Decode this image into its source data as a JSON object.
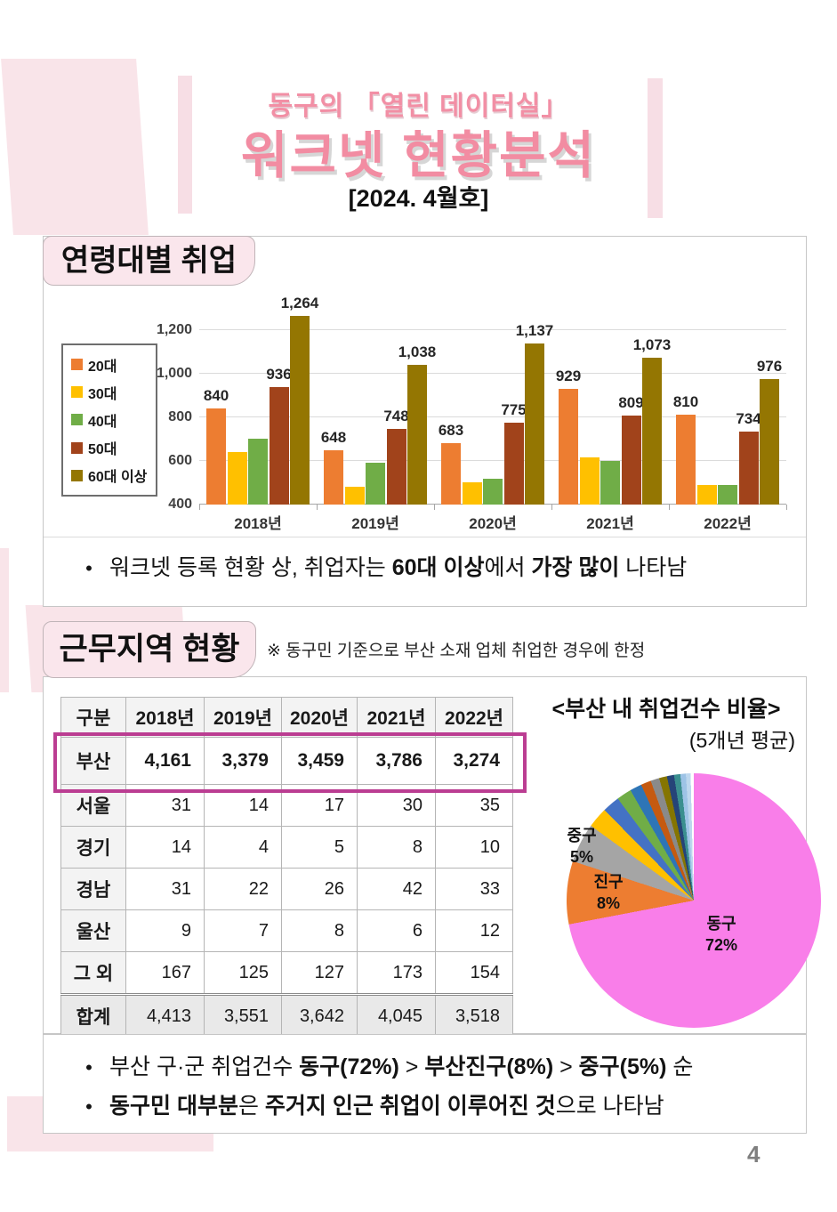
{
  "page": {
    "number": "4"
  },
  "colors": {
    "accent_pink": "#F28CA2",
    "deco_pink": "#F9E4E9",
    "label_box_pink": "#FAE6EC",
    "highlight_border": "#BB3D92",
    "pie_main_pink": "#F97EE9"
  },
  "header": {
    "subtitle": "동구의 「열린 데이터실」",
    "title": "워크넷 현황분석",
    "issue": "[2024. 4월호]"
  },
  "section1": {
    "label": "연령대별 취업",
    "bullet": {
      "segments": [
        {
          "t": "워크넷 등록 현황 상, 취업자는 ",
          "b": false
        },
        {
          "t": "60대 이상",
          "b": true
        },
        {
          "t": "에서 ",
          "b": false
        },
        {
          "t": "가장 많이",
          "b": true
        },
        {
          "t": " 나타남",
          "b": false
        }
      ]
    }
  },
  "chart_data": [
    {
      "type": "bar",
      "title": "연령대별 취업",
      "categories": [
        "2018년",
        "2019년",
        "2020년",
        "2021년",
        "2022년"
      ],
      "series": [
        {
          "name": "20대",
          "color": "#ED7D31",
          "values": [
            840,
            648,
            683,
            929,
            810
          ],
          "labeled": true
        },
        {
          "name": "30대",
          "color": "#FFC000",
          "values": [
            640,
            480,
            500,
            615,
            490
          ],
          "labeled": false
        },
        {
          "name": "40대",
          "color": "#70AD47",
          "values": [
            700,
            590,
            520,
            600,
            490
          ],
          "labeled": false
        },
        {
          "name": "50대",
          "color": "#A1431B",
          "values": [
            936,
            748,
            775,
            809,
            734
          ],
          "labeled": true
        },
        {
          "name": "60대 이상",
          "color": "#947602",
          "values": [
            1264,
            1038,
            1137,
            1073,
            976
          ],
          "labeled": true
        }
      ],
      "ylim": [
        400,
        1300
      ],
      "yticks": [
        400,
        600,
        800,
        1000,
        1200
      ],
      "grid": true,
      "legend_position": "left"
    },
    {
      "type": "pie",
      "title": "<부산 내 취업건수 비율>",
      "subtitle": "(5개년 평균)",
      "slices": [
        {
          "label": "동구",
          "value": 72,
          "color": "#F97EE9"
        },
        {
          "label": "진구",
          "value": 8,
          "color": "#ED7D31"
        },
        {
          "label": "중구",
          "value": 5,
          "color": "#A5A5A5"
        },
        {
          "label": "",
          "value": 2.6,
          "color": "#FFC000"
        },
        {
          "label": "",
          "value": 2.2,
          "color": "#4472C4"
        },
        {
          "label": "",
          "value": 1.9,
          "color": "#70AD47"
        },
        {
          "label": "",
          "value": 1.5,
          "color": "#2E75B6"
        },
        {
          "label": "",
          "value": 1.3,
          "color": "#C55A11"
        },
        {
          "label": "",
          "value": 1.1,
          "color": "#8A8A8A"
        },
        {
          "label": "",
          "value": 1.0,
          "color": "#857500"
        },
        {
          "label": "",
          "value": 0.9,
          "color": "#264478"
        },
        {
          "label": "",
          "value": 0.8,
          "color": "#3A8F8F"
        },
        {
          "label": "",
          "value": 0.7,
          "color": "#9DC3E6"
        },
        {
          "label": "",
          "value": 0.6,
          "color": "#BDD7EE"
        },
        {
          "label": "",
          "value": 0.4,
          "color": "#FFFFFF"
        }
      ]
    }
  ],
  "section2": {
    "label": "근무지역 현황",
    "note": "※ 동구민 기준으로 부산 소재 업체 취업한 경우에 한정",
    "pie_title": "<부산 내 취업건수 비율>",
    "pie_subtitle": "(5개년 평균)",
    "table": {
      "columns": [
        "구분",
        "2018년",
        "2019년",
        "2020년",
        "2021년",
        "2022년"
      ],
      "rows": [
        {
          "label": "부산",
          "values": [
            "4,161",
            "3,379",
            "3,459",
            "3,786",
            "3,274"
          ],
          "highlight": true
        },
        {
          "label": "서울",
          "values": [
            "31",
            "14",
            "17",
            "30",
            "35"
          ]
        },
        {
          "label": "경기",
          "values": [
            "14",
            "4",
            "5",
            "8",
            "10"
          ]
        },
        {
          "label": "경남",
          "values": [
            "31",
            "22",
            "26",
            "42",
            "33"
          ]
        },
        {
          "label": "울산",
          "values": [
            "9",
            "7",
            "8",
            "6",
            "12"
          ]
        },
        {
          "label": "그 외",
          "values": [
            "167",
            "125",
            "127",
            "173",
            "154"
          ]
        },
        {
          "label": "합계",
          "values": [
            "4,413",
            "3,551",
            "3,642",
            "4,045",
            "3,518"
          ],
          "total": true
        }
      ]
    },
    "bullets": [
      {
        "segments": [
          {
            "t": "부산 구·군 취업건수 ",
            "b": false
          },
          {
            "t": "동구(72%)",
            "b": true
          },
          {
            "t": " > ",
            "b": false
          },
          {
            "t": "부산진구(8%)",
            "b": true
          },
          {
            "t": " > ",
            "b": false
          },
          {
            "t": "중구(5%)",
            "b": true
          },
          {
            "t": " 순",
            "b": false
          }
        ]
      },
      {
        "segments": [
          {
            "t": "동구민 대부분",
            "b": true
          },
          {
            "t": "은 ",
            "b": false
          },
          {
            "t": "주거지 인근 취업이 이루어진 것",
            "b": true
          },
          {
            "t": "으로 나타남",
            "b": false
          }
        ]
      }
    ]
  }
}
